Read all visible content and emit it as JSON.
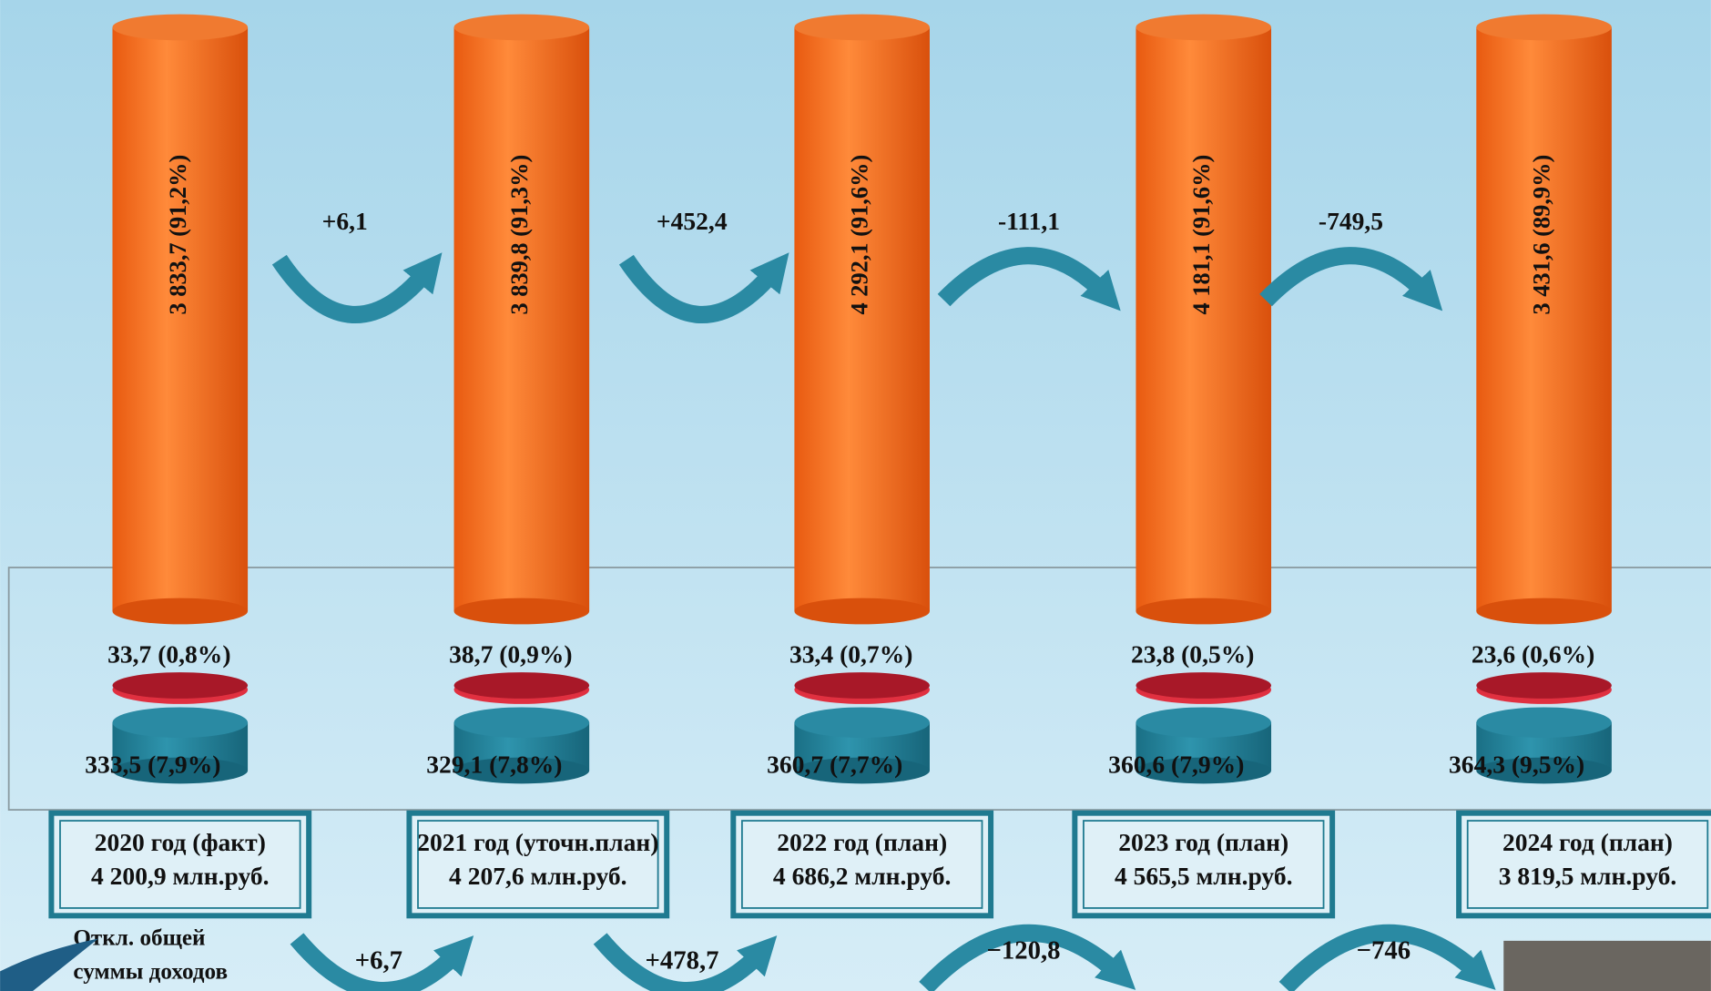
{
  "columns": [
    {
      "main": "3 833,7 (91,2%)",
      "small": "33,7 (0,8%)",
      "base": "333,5 (7,9%)",
      "year": "2020 год (факт)",
      "total": "4 200,9 млн.руб."
    },
    {
      "main": "3 839,8 (91,3%)",
      "small": "38,7 (0,9%)",
      "base": "329,1 (7,8%)",
      "year": "2021 год (уточн.план)",
      "total": "4 207,6 млн.руб."
    },
    {
      "main": "4 292,1 (91,6%)",
      "small": "33,4 (0,7%)",
      "base": "360,7 (7,7%)",
      "year": "2022 год (план)",
      "total": "4 686,2 млн.руб."
    },
    {
      "main": "4 181,1 (91,6%)",
      "small": "23,8 (0,5%)",
      "base": "360,6 (7,9%)",
      "year": "2023 год (план)",
      "total": "4 565,5 млн.руб."
    },
    {
      "main": "3 431,6 (89,9%)",
      "small": "23,6 (0,6%)",
      "base": "364,3 (9,5%)",
      "year": "2024 год (план)",
      "total": "3 819,5 млн.руб."
    }
  ],
  "top_changes": [
    "+6,1",
    "+452,4",
    "-111,1",
    "-749,5"
  ],
  "bottom_note": [
    "Откл. общей",
    "суммы доходов"
  ],
  "bottom_changes": [
    "+6,7",
    "+478,7",
    "−120,8",
    "−746"
  ]
}
